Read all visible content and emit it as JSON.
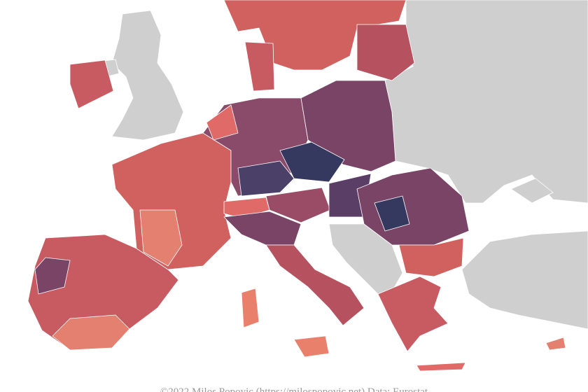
{
  "caption": "©2022 Milos Popovic (https://milospopovic.net) Data: Eurostat"
}
